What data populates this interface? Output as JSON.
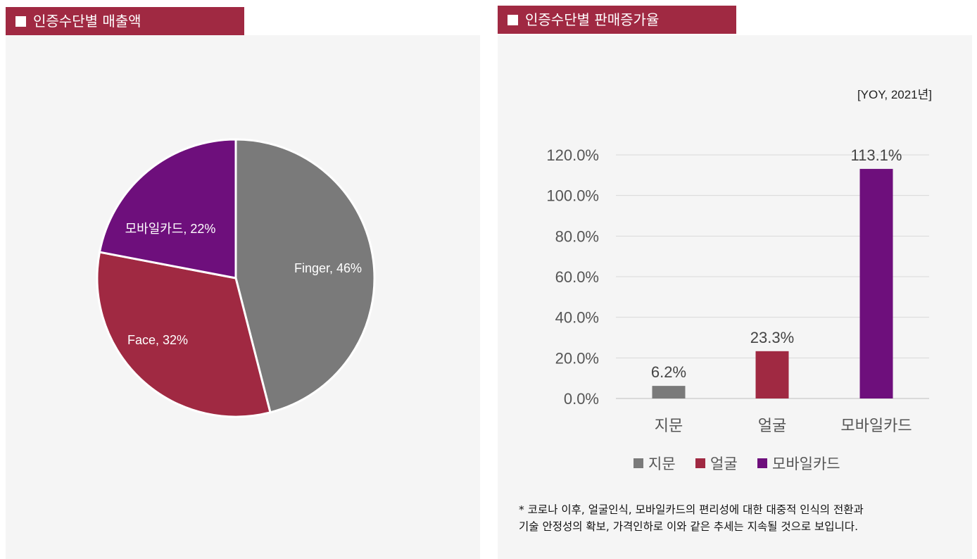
{
  "left_chart": {
    "title": "인증수단별 매출액"
  },
  "right_chart": {
    "title": "인증수단별 판매증가율",
    "unit_note": "[YOY, 2021년]"
  },
  "footnote": {
    "line1": "* 코로나 이후, 얼굴인식, 모바일카드의 편리성에 대한 대중적 인식의 전환과",
    "line2": "기술 안정성의 확보, 가격인하로 이와 같은 추세는 지속될 것으로 보입니다."
  },
  "chart_data": [
    {
      "type": "pie",
      "title": "인증수단별 매출액",
      "slices": [
        {
          "label": "Finger, 46%",
          "value": 46,
          "color": "#7a7a7a"
        },
        {
          "label": "Face, 32%",
          "value": 32,
          "color": "#a02942"
        },
        {
          "label": "모바일카드, 22%",
          "value": 22,
          "color": "#6e0f7c"
        }
      ]
    },
    {
      "type": "bar",
      "title": "인증수단별 판매증가율",
      "categories": [
        "지문",
        "얼굴",
        "모바일카드"
      ],
      "values": [
        6.2,
        23.3,
        113.1
      ],
      "value_labels": [
        "6.2%",
        "23.3%",
        "113.1%"
      ],
      "colors": [
        "#7a7a7a",
        "#a02942",
        "#6e0f7c"
      ],
      "ylim": [
        0,
        120
      ],
      "yticks": [
        "0.0%",
        "20.0%",
        "40.0%",
        "60.0%",
        "80.0%",
        "100.0%",
        "120.0%"
      ],
      "ytick_values": [
        0,
        20,
        40,
        60,
        80,
        100,
        120
      ],
      "legend": [
        "지문",
        "얼굴",
        "모바일카드"
      ],
      "legend_position": "bottom",
      "grid": true
    }
  ]
}
